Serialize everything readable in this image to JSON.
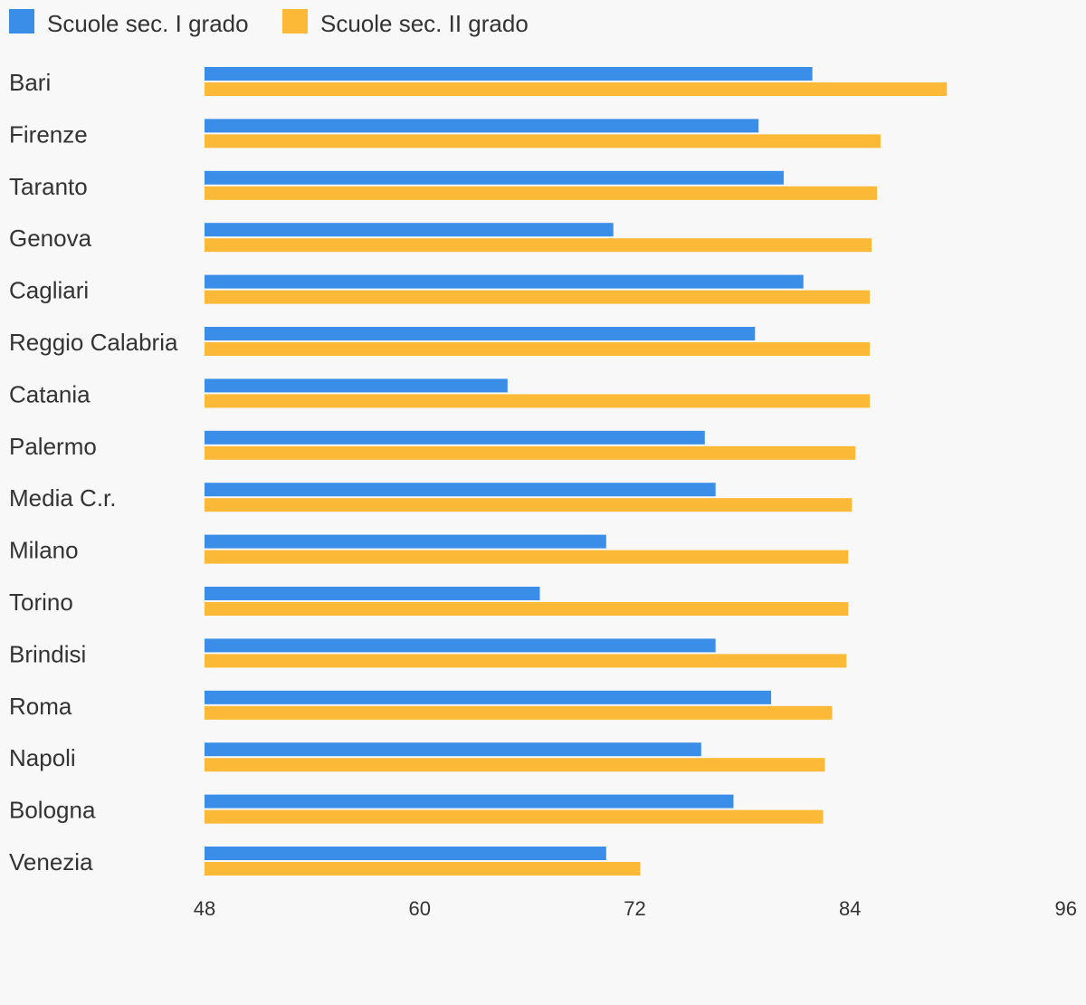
{
  "colors": {
    "series_1": "#3a8ee8",
    "series_2": "#fcb938",
    "background": "#f8f8f8",
    "text": "#333333"
  },
  "chart_data": {
    "type": "bar",
    "orientation": "horizontal",
    "legend_position": "top-left",
    "grid": false,
    "categories": [
      "Bari",
      "Firenze",
      "Taranto",
      "Genova",
      "Cagliari",
      "Reggio Calabria",
      "Catania",
      "Palermo",
      "Media C.r.",
      "Milano",
      "Torino",
      "Brindisi",
      "Roma",
      "Napoli",
      "Bologna",
      "Venezia"
    ],
    "series": [
      {
        "name": "Scuole sec. I grado",
        "values": [
          81.9,
          78.9,
          80.3,
          70.8,
          81.4,
          78.7,
          64.9,
          75.9,
          76.5,
          70.4,
          66.7,
          76.5,
          79.6,
          75.7,
          77.5,
          70.4
        ]
      },
      {
        "name": "Scuole sec. II grado",
        "values": [
          89.4,
          85.7,
          85.5,
          85.2,
          85.1,
          85.1,
          85.1,
          84.3,
          84.1,
          83.9,
          83.9,
          83.8,
          83.0,
          82.6,
          82.5,
          72.3
        ]
      }
    ],
    "xlim": [
      48,
      96
    ],
    "xticks": [
      "48",
      "60",
      "72",
      "84",
      "96"
    ],
    "title": "",
    "xlabel": "",
    "ylabel": ""
  }
}
